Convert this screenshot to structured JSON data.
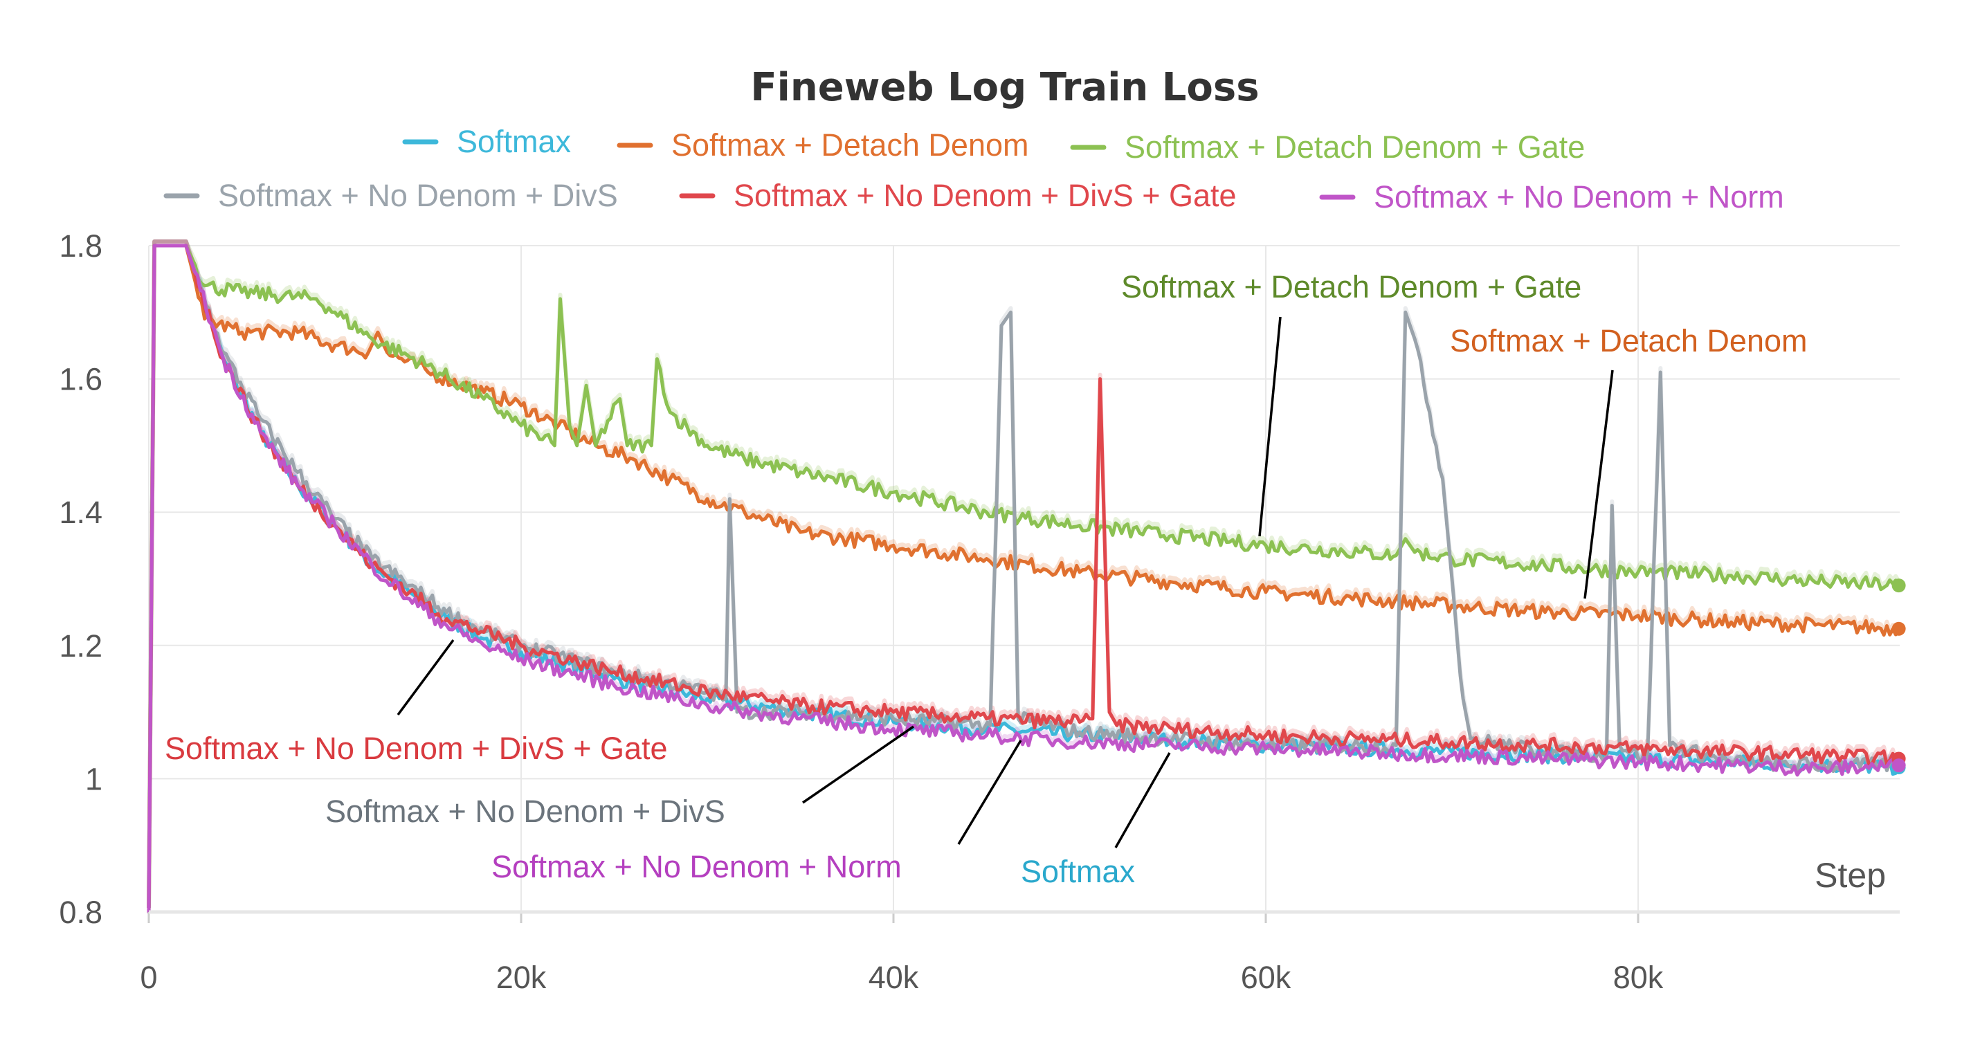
{
  "chart_data": {
    "type": "line",
    "title": "Fineweb Log Train Loss",
    "xlabel": "Step",
    "ylabel": "",
    "xlim": [
      0,
      94000
    ],
    "ylim": [
      0.8,
      1.8
    ],
    "x_ticks": [
      {
        "value": 0,
        "label": "0"
      },
      {
        "value": 20000,
        "label": "20k"
      },
      {
        "value": 40000,
        "label": "40k"
      },
      {
        "value": 60000,
        "label": "60k"
      },
      {
        "value": 80000,
        "label": "80k"
      }
    ],
    "y_ticks": [
      {
        "value": 0.8,
        "label": "0.8"
      },
      {
        "value": 1.0,
        "label": "1"
      },
      {
        "value": 1.2,
        "label": "1.2"
      },
      {
        "value": 1.4,
        "label": "1.4"
      },
      {
        "value": 1.6,
        "label": "1.6"
      },
      {
        "value": 1.8,
        "label": "1.8"
      }
    ],
    "grid": true,
    "legend_position": "top",
    "series": [
      {
        "name": "Softmax",
        "color": "#3DB8DA",
        "points": [
          [
            0,
            0.8
          ],
          [
            300,
            1.8
          ],
          [
            2000,
            1.8
          ],
          [
            4000,
            1.63
          ],
          [
            6000,
            1.52
          ],
          [
            8000,
            1.44
          ],
          [
            10000,
            1.38
          ],
          [
            12000,
            1.32
          ],
          [
            14000,
            1.28
          ],
          [
            16000,
            1.24
          ],
          [
            18000,
            1.21
          ],
          [
            20000,
            1.19
          ],
          [
            25000,
            1.15
          ],
          [
            30000,
            1.12
          ],
          [
            35000,
            1.1
          ],
          [
            40000,
            1.085
          ],
          [
            45000,
            1.075
          ],
          [
            50000,
            1.065
          ],
          [
            55000,
            1.058
          ],
          [
            60000,
            1.05
          ],
          [
            65000,
            1.045
          ],
          [
            70000,
            1.04
          ],
          [
            75000,
            1.035
          ],
          [
            80000,
            1.03
          ],
          [
            85000,
            1.025
          ],
          [
            90000,
            1.02
          ],
          [
            94000,
            1.017
          ]
        ]
      },
      {
        "name": "Softmax + Detach Denom",
        "color": "#E0702F",
        "points": [
          [
            0,
            0.8
          ],
          [
            300,
            1.8
          ],
          [
            2000,
            1.8
          ],
          [
            3000,
            1.69
          ],
          [
            5000,
            1.67
          ],
          [
            8000,
            1.67
          ],
          [
            10000,
            1.65
          ],
          [
            11800,
            1.64
          ],
          [
            12300,
            1.67
          ],
          [
            12800,
            1.64
          ],
          [
            15000,
            1.61
          ],
          [
            18000,
            1.58
          ],
          [
            20000,
            1.56
          ],
          [
            22000,
            1.53
          ],
          [
            24000,
            1.5
          ],
          [
            26000,
            1.48
          ],
          [
            28000,
            1.45
          ],
          [
            30000,
            1.42
          ],
          [
            32000,
            1.4
          ],
          [
            35000,
            1.37
          ],
          [
            40000,
            1.35
          ],
          [
            45000,
            1.33
          ],
          [
            50000,
            1.31
          ],
          [
            55000,
            1.295
          ],
          [
            60000,
            1.28
          ],
          [
            65000,
            1.27
          ],
          [
            70000,
            1.26
          ],
          [
            75000,
            1.25
          ],
          [
            80000,
            1.245
          ],
          [
            85000,
            1.235
          ],
          [
            90000,
            1.23
          ],
          [
            94000,
            1.225
          ]
        ]
      },
      {
        "name": "Softmax + Detach Denom + Gate",
        "color": "#8CC152",
        "points": [
          [
            0,
            0.8
          ],
          [
            300,
            1.8
          ],
          [
            2000,
            1.8
          ],
          [
            3000,
            1.74
          ],
          [
            5000,
            1.73
          ],
          [
            9000,
            1.72
          ],
          [
            10000,
            1.7
          ],
          [
            12000,
            1.66
          ],
          [
            15000,
            1.62
          ],
          [
            18000,
            1.57
          ],
          [
            20000,
            1.53
          ],
          [
            21800,
            1.5
          ],
          [
            22100,
            1.72
          ],
          [
            22600,
            1.53
          ],
          [
            23000,
            1.5
          ],
          [
            23500,
            1.59
          ],
          [
            24000,
            1.5
          ],
          [
            25300,
            1.57
          ],
          [
            25700,
            1.5
          ],
          [
            27000,
            1.5
          ],
          [
            27300,
            1.63
          ],
          [
            28000,
            1.55
          ],
          [
            30000,
            1.5
          ],
          [
            32000,
            1.48
          ],
          [
            35000,
            1.46
          ],
          [
            40000,
            1.43
          ],
          [
            45000,
            1.4
          ],
          [
            50000,
            1.38
          ],
          [
            55000,
            1.365
          ],
          [
            60000,
            1.35
          ],
          [
            65000,
            1.34
          ],
          [
            67000,
            1.335
          ],
          [
            67500,
            1.36
          ],
          [
            68000,
            1.34
          ],
          [
            70000,
            1.33
          ],
          [
            75000,
            1.32
          ],
          [
            80000,
            1.31
          ],
          [
            85000,
            1.305
          ],
          [
            90000,
            1.295
          ],
          [
            94000,
            1.29
          ]
        ]
      },
      {
        "name": "Softmax + No Denom + DivS",
        "color": "#9AA3AB",
        "points": [
          [
            0,
            0.8
          ],
          [
            300,
            1.8
          ],
          [
            2000,
            1.8
          ],
          [
            4000,
            1.64
          ],
          [
            6000,
            1.54
          ],
          [
            8000,
            1.46
          ],
          [
            10000,
            1.39
          ],
          [
            12000,
            1.33
          ],
          [
            14000,
            1.29
          ],
          [
            16000,
            1.25
          ],
          [
            18000,
            1.22
          ],
          [
            20000,
            1.2
          ],
          [
            25000,
            1.16
          ],
          [
            30000,
            1.13
          ],
          [
            31000,
            1.12
          ],
          [
            31200,
            1.42
          ],
          [
            31600,
            1.1
          ],
          [
            35000,
            1.1
          ],
          [
            40000,
            1.09
          ],
          [
            45200,
            1.08
          ],
          [
            45800,
            1.68
          ],
          [
            46300,
            1.7
          ],
          [
            46700,
            1.09
          ],
          [
            50000,
            1.07
          ],
          [
            55000,
            1.06
          ],
          [
            60000,
            1.05
          ],
          [
            65000,
            1.05
          ],
          [
            67000,
            1.05
          ],
          [
            67500,
            1.7
          ],
          [
            68000,
            1.66
          ],
          [
            68800,
            1.55
          ],
          [
            69500,
            1.45
          ],
          [
            70000,
            1.3
          ],
          [
            70600,
            1.12
          ],
          [
            71000,
            1.06
          ],
          [
            75000,
            1.04
          ],
          [
            78300,
            1.035
          ],
          [
            78600,
            1.41
          ],
          [
            79000,
            1.05
          ],
          [
            80500,
            1.03
          ],
          [
            81200,
            1.61
          ],
          [
            81700,
            1.05
          ],
          [
            85000,
            1.025
          ],
          [
            90000,
            1.02
          ],
          [
            94000,
            1.02
          ]
        ]
      },
      {
        "name": "Softmax + No Denom + DivS + Gate",
        "color": "#E0474C",
        "points": [
          [
            0,
            0.8
          ],
          [
            300,
            1.8
          ],
          [
            2000,
            1.8
          ],
          [
            4000,
            1.63
          ],
          [
            6000,
            1.52
          ],
          [
            8000,
            1.44
          ],
          [
            10000,
            1.38
          ],
          [
            12000,
            1.32
          ],
          [
            14000,
            1.28
          ],
          [
            16000,
            1.24
          ],
          [
            18000,
            1.22
          ],
          [
            20000,
            1.2
          ],
          [
            25000,
            1.16
          ],
          [
            30000,
            1.13
          ],
          [
            35000,
            1.11
          ],
          [
            40000,
            1.1
          ],
          [
            45000,
            1.09
          ],
          [
            50000,
            1.085
          ],
          [
            50700,
            1.09
          ],
          [
            51100,
            1.6
          ],
          [
            51600,
            1.1
          ],
          [
            52000,
            1.08
          ],
          [
            55000,
            1.075
          ],
          [
            60000,
            1.065
          ],
          [
            65000,
            1.06
          ],
          [
            70000,
            1.055
          ],
          [
            75000,
            1.05
          ],
          [
            80000,
            1.045
          ],
          [
            85000,
            1.04
          ],
          [
            90000,
            1.035
          ],
          [
            94000,
            1.03
          ]
        ]
      },
      {
        "name": "Softmax + No Denom + Norm",
        "color": "#C055C8",
        "points": [
          [
            0,
            0.8
          ],
          [
            300,
            1.8
          ],
          [
            2000,
            1.8
          ],
          [
            4000,
            1.63
          ],
          [
            6000,
            1.52
          ],
          [
            8000,
            1.44
          ],
          [
            10000,
            1.38
          ],
          [
            12000,
            1.32
          ],
          [
            14000,
            1.27
          ],
          [
            16000,
            1.23
          ],
          [
            18000,
            1.2
          ],
          [
            20000,
            1.18
          ],
          [
            25000,
            1.14
          ],
          [
            30000,
            1.11
          ],
          [
            35000,
            1.09
          ],
          [
            40000,
            1.075
          ],
          [
            45000,
            1.065
          ],
          [
            50000,
            1.055
          ],
          [
            55000,
            1.05
          ],
          [
            60000,
            1.045
          ],
          [
            65000,
            1.04
          ],
          [
            70000,
            1.035
          ],
          [
            75000,
            1.03
          ],
          [
            80000,
            1.025
          ],
          [
            85000,
            1.02
          ],
          [
            90000,
            1.015
          ],
          [
            94000,
            1.02
          ]
        ]
      }
    ],
    "annotations": [
      {
        "text": "Softmax + Detach Denom + Gate",
        "series": "Softmax + Detach Denom + Gate",
        "color": "#5E8A2A"
      },
      {
        "text": "Softmax + Detach Denom",
        "series": "Softmax + Detach Denom",
        "color": "#D2601F"
      },
      {
        "text": "Softmax + No Denom + DivS + Gate",
        "series": "Softmax + No Denom + DivS + Gate",
        "color": "#D93A3F"
      },
      {
        "text": "Softmax + No Denom + DivS",
        "series": "Softmax + No Denom + DivS",
        "color": "#6B747C"
      },
      {
        "text": "Softmax + No Denom + Norm",
        "series": "Softmax + No Denom + Norm",
        "color": "#B43FBF"
      },
      {
        "text": "Softmax",
        "series": "Softmax",
        "color": "#2AA8CC"
      }
    ]
  }
}
